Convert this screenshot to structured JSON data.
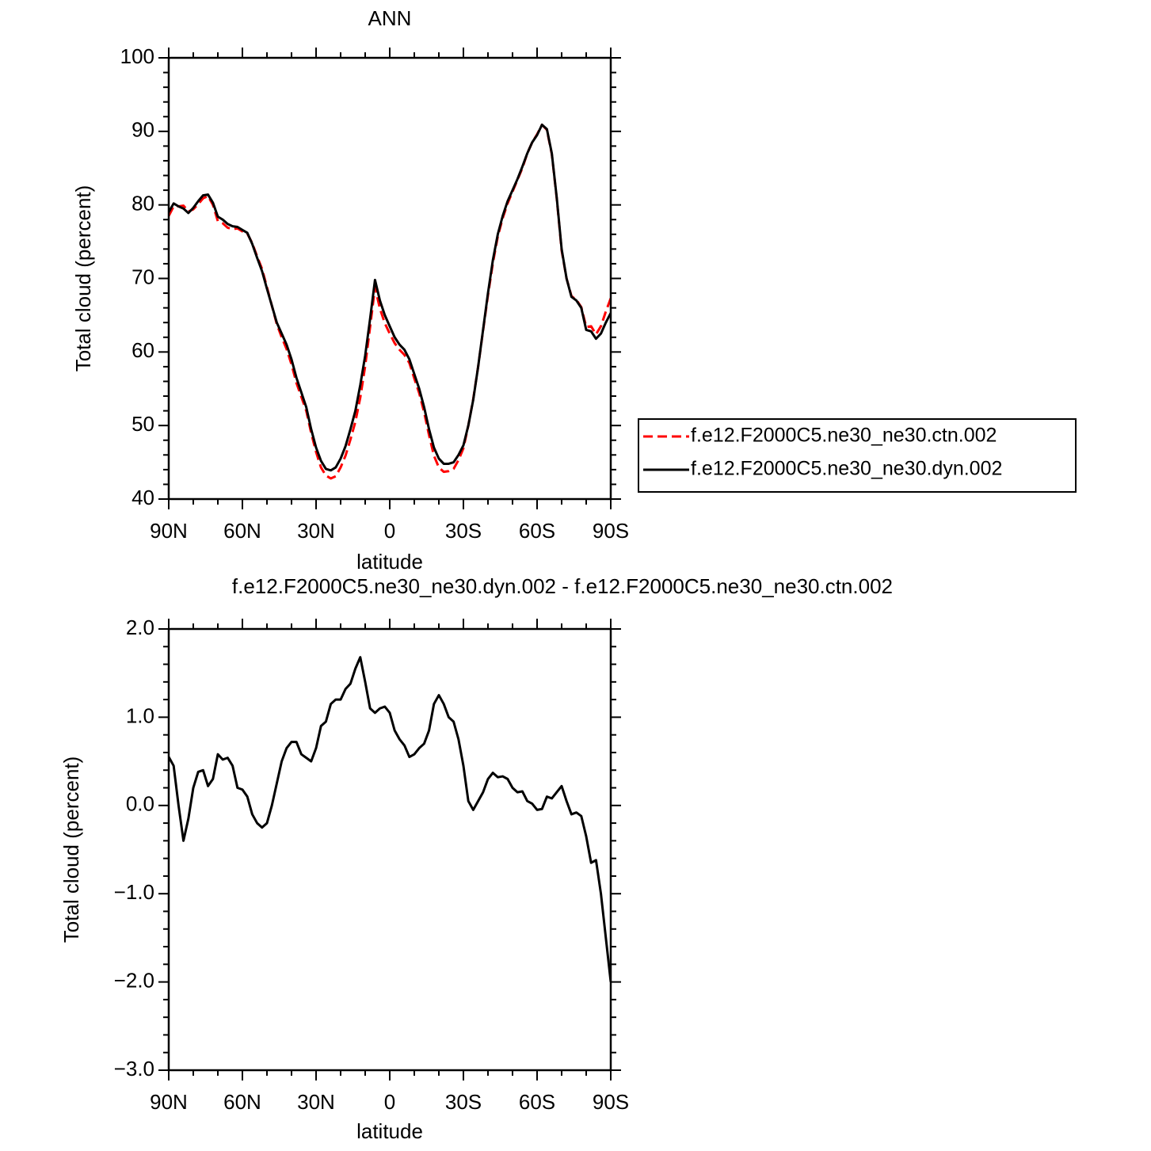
{
  "chart_data": [
    {
      "type": "line",
      "title": "ANN",
      "xlabel": "latitude",
      "ylabel": "Total cloud (percent)",
      "x": [
        90,
        88,
        86,
        84,
        82,
        80,
        78,
        76,
        74,
        72,
        70,
        68,
        66,
        64,
        62,
        60,
        58,
        56,
        54,
        52,
        50,
        48,
        46,
        44,
        42,
        40,
        38,
        36,
        34,
        32,
        30,
        28,
        26,
        24,
        22,
        20,
        18,
        16,
        14,
        12,
        10,
        8,
        6,
        4,
        2,
        0,
        -2,
        -4,
        -6,
        -8,
        -10,
        -12,
        -14,
        -16,
        -18,
        -20,
        -22,
        -24,
        -26,
        -28,
        -30,
        -32,
        -34,
        -36,
        -38,
        -40,
        -42,
        -44,
        -46,
        -48,
        -50,
        -52,
        -54,
        -56,
        -58,
        -60,
        -62,
        -64,
        -66,
        -68,
        -70,
        -72,
        -74,
        -76,
        -78,
        -80,
        -82,
        -84,
        -86,
        -88,
        -90
      ],
      "xlim": [
        90,
        -90
      ],
      "xticks": [
        {
          "value": 90,
          "label": "90N"
        },
        {
          "value": 60,
          "label": "60N"
        },
        {
          "value": 30,
          "label": "30N"
        },
        0,
        {
          "value": -30,
          "label": "30S"
        },
        {
          "value": -60,
          "label": "60S"
        },
        {
          "value": -90,
          "label": "90S"
        }
      ],
      "x_minor_divisions": 3,
      "ylim": [
        40,
        100
      ],
      "yticks": [
        40,
        50,
        60,
        70,
        80,
        90,
        100
      ],
      "y_minor_divisions": 5,
      "legend": "right",
      "series": [
        {
          "name": "f.e12.F2000C5.ne30_ne30.ctn.002",
          "color": "#ff0000",
          "dashed": true,
          "values": [
            78.5,
            79.8,
            79.8,
            79.9,
            79.1,
            79.4,
            80.1,
            80.9,
            81.2,
            80.0,
            77.8,
            77.5,
            76.9,
            76.7,
            76.8,
            76.4,
            76.1,
            74.8,
            73.0,
            71.3,
            68.8,
            66.3,
            63.8,
            62.0,
            60.4,
            58.3,
            55.8,
            53.9,
            52.0,
            49.0,
            46.4,
            44.3,
            43.2,
            42.8,
            43.1,
            44.3,
            45.9,
            48.1,
            50.5,
            53.8,
            58.1,
            63.4,
            68.8,
            65.9,
            63.9,
            62.5,
            61.2,
            60.3,
            59.6,
            58.5,
            56.4,
            54.4,
            51.8,
            48.7,
            45.9,
            44.3,
            43.7,
            43.8,
            44.1,
            45.3,
            46.9,
            50.0,
            53.6,
            58.0,
            62.9,
            67.7,
            72.1,
            75.7,
            78.2,
            80.2,
            81.8,
            83.4,
            85.0,
            87.0,
            88.5,
            89.6,
            90.9,
            90.2,
            86.9,
            80.9,
            73.8,
            70.0,
            67.6,
            67.1,
            66.1,
            63.4,
            63.5,
            62.4,
            63.5,
            65.5,
            67.3
          ]
        },
        {
          "name": "f.e12.F2000C5.ne30_ne30.dyn.002",
          "color": "#000000",
          "dashed": false,
          "values": [
            79.0,
            80.2,
            79.8,
            79.5,
            78.9,
            79.6,
            80.5,
            81.3,
            81.4,
            80.3,
            78.4,
            78.0,
            77.4,
            77.1,
            77.0,
            76.6,
            76.2,
            74.7,
            72.8,
            71.0,
            68.6,
            66.3,
            64.0,
            62.5,
            61.0,
            59.0,
            56.5,
            54.5,
            52.5,
            49.5,
            47.0,
            45.2,
            44.1,
            43.9,
            44.3,
            45.5,
            47.2,
            49.5,
            52.0,
            55.5,
            59.5,
            64.5,
            69.8,
            67.0,
            65.0,
            63.5,
            62.0,
            61.0,
            60.3,
            59.0,
            57.0,
            55.0,
            52.5,
            49.5,
            47.0,
            45.5,
            44.8,
            44.8,
            45.0,
            46.0,
            47.3,
            50.0,
            53.5,
            58.0,
            63.0,
            68.0,
            72.5,
            76.0,
            78.5,
            80.5,
            82.0,
            83.5,
            85.2,
            87.0,
            88.5,
            89.5,
            90.9,
            90.3,
            87.0,
            81.0,
            74.0,
            70.0,
            67.5,
            67.0,
            66.0,
            63.0,
            62.8,
            61.8,
            62.5,
            64.0,
            65.3
          ]
        }
      ]
    },
    {
      "type": "line",
      "title": "f.e12.F2000C5.ne30_ne30.dyn.002 - f.e12.F2000C5.ne30_ne30.ctn.002",
      "xlabel": "latitude",
      "ylabel": "Total cloud (percent)",
      "x": [
        90,
        88,
        86,
        84,
        82,
        80,
        78,
        76,
        74,
        72,
        70,
        68,
        66,
        64,
        62,
        60,
        58,
        56,
        54,
        52,
        50,
        48,
        46,
        44,
        42,
        40,
        38,
        36,
        34,
        32,
        30,
        28,
        26,
        24,
        22,
        20,
        18,
        16,
        14,
        12,
        10,
        8,
        6,
        4,
        2,
        0,
        -2,
        -4,
        -6,
        -8,
        -10,
        -12,
        -14,
        -16,
        -18,
        -20,
        -22,
        -24,
        -26,
        -28,
        -30,
        -32,
        -34,
        -36,
        -38,
        -40,
        -42,
        -44,
        -46,
        -48,
        -50,
        -52,
        -54,
        -56,
        -58,
        -60,
        -62,
        -64,
        -66,
        -68,
        -70,
        -72,
        -74,
        -76,
        -78,
        -80,
        -82,
        -84,
        -86,
        -88,
        -90
      ],
      "xlim": [
        90,
        -90
      ],
      "xticks": [
        {
          "value": 90,
          "label": "90N"
        },
        {
          "value": 60,
          "label": "60N"
        },
        {
          "value": 30,
          "label": "30N"
        },
        0,
        {
          "value": -30,
          "label": "30S"
        },
        {
          "value": -60,
          "label": "60S"
        },
        {
          "value": -90,
          "label": "90S"
        }
      ],
      "x_minor_divisions": 3,
      "ylim": [
        -3,
        2
      ],
      "yticks": [
        {
          "value": 2,
          "label": "2.0"
        },
        {
          "value": 1,
          "label": "1.0"
        },
        {
          "value": 0,
          "label": "0.0"
        },
        {
          "value": -1,
          "label": "−1.0"
        },
        {
          "value": -2,
          "label": "−2.0"
        },
        {
          "value": -3,
          "label": "−3.0"
        }
      ],
      "y_minor_divisions": 5,
      "color": "#000000",
      "values": [
        0.55,
        0.45,
        0.0,
        -0.4,
        -0.15,
        0.2,
        0.38,
        0.4,
        0.22,
        0.3,
        0.58,
        0.52,
        0.54,
        0.45,
        0.2,
        0.18,
        0.1,
        -0.1,
        -0.2,
        -0.25,
        -0.2,
        0.0,
        0.25,
        0.5,
        0.65,
        0.72,
        0.72,
        0.58,
        0.54,
        0.5,
        0.65,
        0.9,
        0.95,
        1.15,
        1.2,
        1.2,
        1.32,
        1.38,
        1.55,
        1.68,
        1.4,
        1.1,
        1.05,
        1.1,
        1.12,
        1.05,
        0.85,
        0.75,
        0.68,
        0.55,
        0.58,
        0.65,
        0.7,
        0.85,
        1.15,
        1.25,
        1.15,
        1.0,
        0.95,
        0.75,
        0.45,
        0.05,
        -0.05,
        0.05,
        0.15,
        0.3,
        0.37,
        0.32,
        0.33,
        0.3,
        0.2,
        0.15,
        0.16,
        0.05,
        0.02,
        -0.05,
        -0.04,
        0.1,
        0.08,
        0.15,
        0.22,
        0.05,
        -0.1,
        -0.08,
        -0.12,
        -0.35,
        -0.65,
        -0.62,
        -1.0,
        -1.5,
        -2.0
      ]
    }
  ]
}
